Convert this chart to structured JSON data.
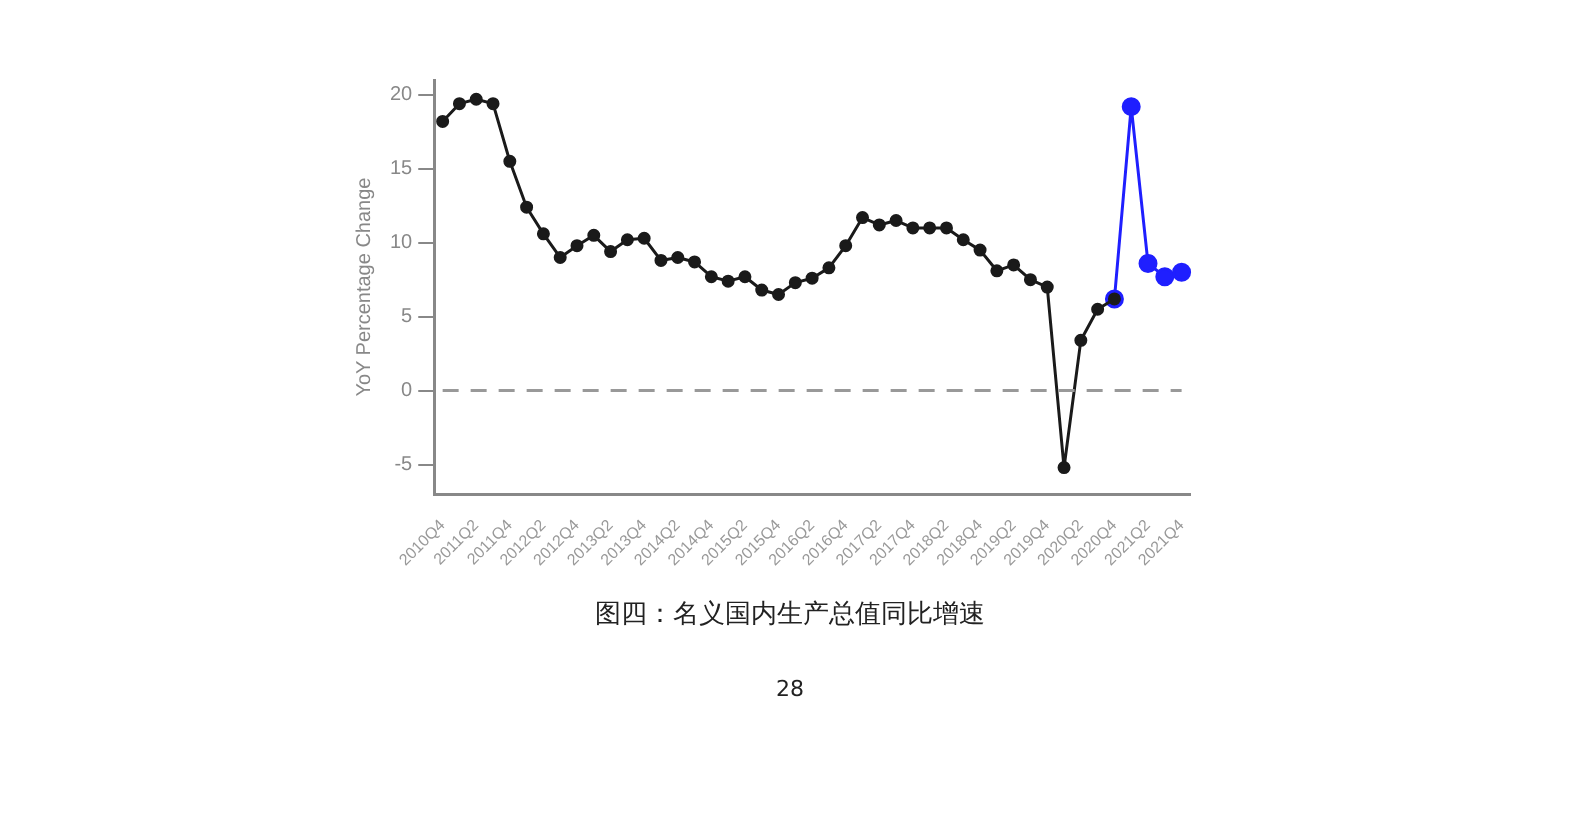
{
  "chart_data": {
    "type": "line",
    "ylabel": "YoY Percentage Change",
    "annotations": [
      "图四：名义国内生产总值同比增速",
      "28"
    ],
    "categories": [
      "2010Q4",
      null,
      "2011Q2",
      null,
      "2011Q4",
      null,
      "2012Q2",
      null,
      "2012Q4",
      null,
      "2013Q2",
      null,
      "2013Q4",
      null,
      "2014Q2",
      null,
      "2014Q4",
      null,
      "2015Q2",
      null,
      "2015Q4",
      null,
      "2016Q2",
      null,
      "2016Q4",
      null,
      "2017Q2",
      null,
      "2017Q4",
      null,
      "2018Q2",
      null,
      "2018Q4",
      null,
      "2019Q2",
      null,
      "2019Q4",
      null,
      "2020Q2",
      null,
      "2020Q4",
      null,
      "2021Q2",
      null,
      "2021Q4"
    ],
    "series": [
      {
        "color": "#1a1a1a",
        "values": [
          18.2,
          19.4,
          19.7,
          19.4,
          15.5,
          12.4,
          10.6,
          9.0,
          9.8,
          10.5,
          9.4,
          10.2,
          10.3,
          8.8,
          9.0,
          8.7,
          7.7,
          7.4,
          7.7,
          6.8,
          6.5,
          7.3,
          7.6,
          8.3,
          9.8,
          11.7,
          11.2,
          11.5,
          11.0,
          11.0,
          11.0,
          10.2,
          9.5,
          8.1,
          8.5,
          7.5,
          7.0,
          -5.2,
          3.4,
          5.5,
          6.2,
          null,
          null,
          null,
          null
        ]
      },
      {
        "color": "#1f1fff",
        "values": [
          null,
          null,
          null,
          null,
          null,
          null,
          null,
          null,
          null,
          null,
          null,
          null,
          null,
          null,
          null,
          null,
          null,
          null,
          null,
          null,
          null,
          null,
          null,
          null,
          null,
          null,
          null,
          null,
          null,
          null,
          null,
          null,
          null,
          null,
          null,
          null,
          null,
          null,
          null,
          null,
          6.2,
          19.2,
          8.6,
          7.7,
          8.0
        ]
      }
    ],
    "ylim": [
      -7,
      21
    ],
    "yticks": [
      -5,
      0,
      5,
      10,
      15,
      20
    ],
    "grid": false,
    "legend": false,
    "marker": "circle",
    "line_style": "solid",
    "ref_lines": [
      {
        "axis": "y",
        "value": 0,
        "color": "#999999",
        "line_style": "dashed"
      }
    ]
  }
}
